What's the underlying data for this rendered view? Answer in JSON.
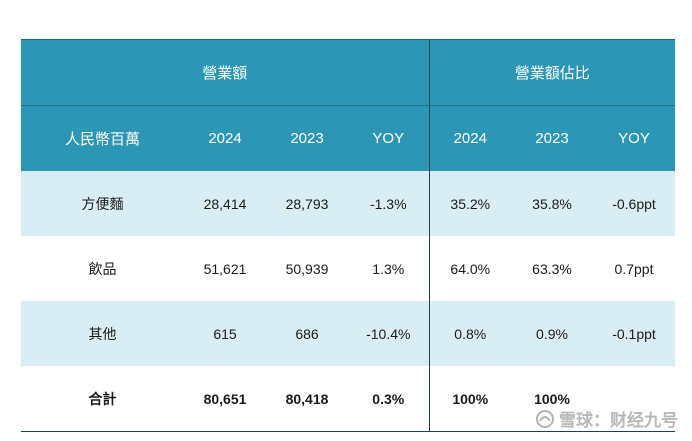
{
  "groups": {
    "revenue": "營業額",
    "share": "營業額佔比"
  },
  "columns": [
    "人民幣百萬",
    "2024",
    "2023",
    "YOY",
    "2024",
    "2023",
    "YOY"
  ],
  "rows": [
    {
      "cells": [
        "方便麵",
        "28,414",
        "28,793",
        "-1.3%",
        "35.2%",
        "35.8%",
        "-0.6ppt"
      ]
    },
    {
      "cells": [
        "飲品",
        "51,621",
        "50,939",
        "1.3%",
        "64.0%",
        "63.3%",
        "0.7ppt"
      ]
    },
    {
      "cells": [
        "其他",
        "615",
        "686",
        "-10.4%",
        "0.8%",
        "0.9%",
        "-0.1ppt"
      ]
    }
  ],
  "total": {
    "cells": [
      "合計",
      "80,651",
      "80,418",
      "0.3%",
      "100%",
      "100%",
      ""
    ]
  },
  "watermark": {
    "text": "雪球：财经九号"
  },
  "colors": {
    "header_bg": "#2b97b4",
    "shaded_row": "#d9eef4",
    "header_text": "#ffffff"
  }
}
